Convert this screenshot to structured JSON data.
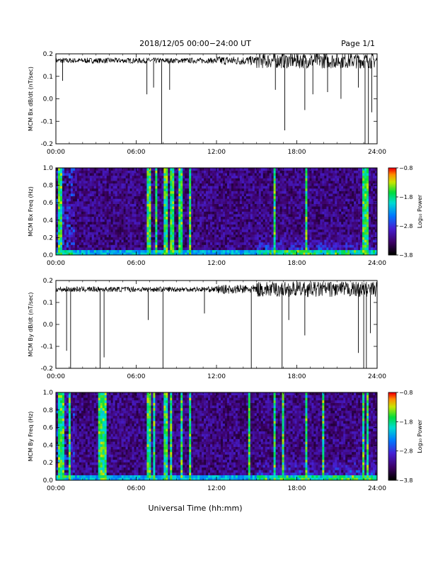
{
  "header": {
    "title": "2018/12/05  00:00−24:00 UT",
    "page": "Page 1/1"
  },
  "footer": {
    "xlabel": "Universal Time (hh:mm)"
  },
  "colorbar": {
    "title": "Log₁₀ Power",
    "tick_labels": [
      "−0.8",
      "−1.8",
      "−2.8",
      "−3.8"
    ]
  },
  "chart_data": [
    {
      "type": "line",
      "ylabel": "MCM Bx dB/dt (nT/sec)",
      "xlim": [
        0,
        24
      ],
      "ylim": [
        -0.2,
        0.2
      ],
      "x_tick_labels": [
        "00:00",
        "06:00",
        "12:00",
        "18:00",
        "24:00"
      ],
      "y_tick_labels": [
        "-0.2",
        "-0.1",
        "0.0",
        "0.1",
        "0.2"
      ],
      "baseline": 0.17,
      "spikes": [
        {
          "x": 0.5,
          "y": 0.08
        },
        {
          "x": 6.8,
          "y": 0.02
        },
        {
          "x": 7.3,
          "y": 0.05
        },
        {
          "x": 7.9,
          "y": -0.2
        },
        {
          "x": 8.5,
          "y": 0.04
        },
        {
          "x": 16.4,
          "y": 0.04
        },
        {
          "x": 17.1,
          "y": -0.14
        },
        {
          "x": 18.6,
          "y": -0.05
        },
        {
          "x": 19.2,
          "y": 0.02
        },
        {
          "x": 20.3,
          "y": 0.03
        },
        {
          "x": 21.3,
          "y": 0.0
        },
        {
          "x": 22.6,
          "y": 0.05
        },
        {
          "x": 23.1,
          "y": -0.2
        },
        {
          "x": 23.35,
          "y": -0.2
        },
        {
          "x": 23.6,
          "y": -0.06
        }
      ]
    },
    {
      "type": "heatmap",
      "ylabel": "MCM Bx Freq (Hz)",
      "xlim": [
        0,
        24
      ],
      "ylim": [
        0,
        1.0
      ],
      "zlim": [
        -3.8,
        -0.8
      ],
      "x_tick_labels": [
        "00:00",
        "06:00",
        "12:00",
        "18:00",
        "24:00"
      ],
      "y_tick_labels": [
        "0.0",
        "0.2",
        "0.4",
        "0.6",
        "0.8",
        "1.0"
      ],
      "bright_columns_hour": [
        0.2,
        0.35,
        6.95,
        7.45,
        8.2,
        8.6,
        8.75,
        9.3,
        10.0,
        16.35,
        18.75,
        23.05,
        23.25
      ]
    },
    {
      "type": "line",
      "ylabel": "MCM By dB/dt (nT/sec)",
      "xlim": [
        0,
        24
      ],
      "ylim": [
        -0.2,
        0.2
      ],
      "x_tick_labels": [
        "00:00",
        "06:00",
        "12:00",
        "18:00",
        "24:00"
      ],
      "y_tick_labels": [
        "-0.2",
        "-0.1",
        "0.0",
        "0.1",
        "0.2"
      ],
      "baseline": 0.16,
      "spikes": [
        {
          "x": 0.8,
          "y": -0.12
        },
        {
          "x": 1.1,
          "y": -0.2
        },
        {
          "x": 3.3,
          "y": -0.2
        },
        {
          "x": 3.6,
          "y": -0.15
        },
        {
          "x": 6.9,
          "y": 0.02
        },
        {
          "x": 8.0,
          "y": -0.2
        },
        {
          "x": 11.1,
          "y": 0.05
        },
        {
          "x": 14.6,
          "y": -0.2
        },
        {
          "x": 16.9,
          "y": -0.2
        },
        {
          "x": 17.4,
          "y": 0.02
        },
        {
          "x": 18.6,
          "y": -0.05
        },
        {
          "x": 22.6,
          "y": -0.13
        },
        {
          "x": 23.0,
          "y": -0.2
        },
        {
          "x": 23.2,
          "y": -0.2
        },
        {
          "x": 23.5,
          "y": -0.04
        }
      ]
    },
    {
      "type": "heatmap",
      "ylabel": "MCM By Freq (Hz)",
      "xlim": [
        0,
        24
      ],
      "ylim": [
        0,
        1.0
      ],
      "zlim": [
        -3.8,
        -0.8
      ],
      "x_tick_labels": [
        "00:00",
        "06:00",
        "12:00",
        "18:00",
        "24:00"
      ],
      "y_tick_labels": [
        "0.0",
        "0.2",
        "0.4",
        "0.6",
        "0.8",
        "1.0"
      ],
      "bright_columns_hour": [
        0.3,
        0.6,
        1.0,
        3.25,
        3.4,
        3.65,
        6.95,
        7.3,
        8.1,
        8.3,
        8.6,
        9.4,
        10.05,
        14.5,
        16.35,
        17.0,
        18.7,
        20.0,
        23.0,
        23.25
      ]
    }
  ]
}
